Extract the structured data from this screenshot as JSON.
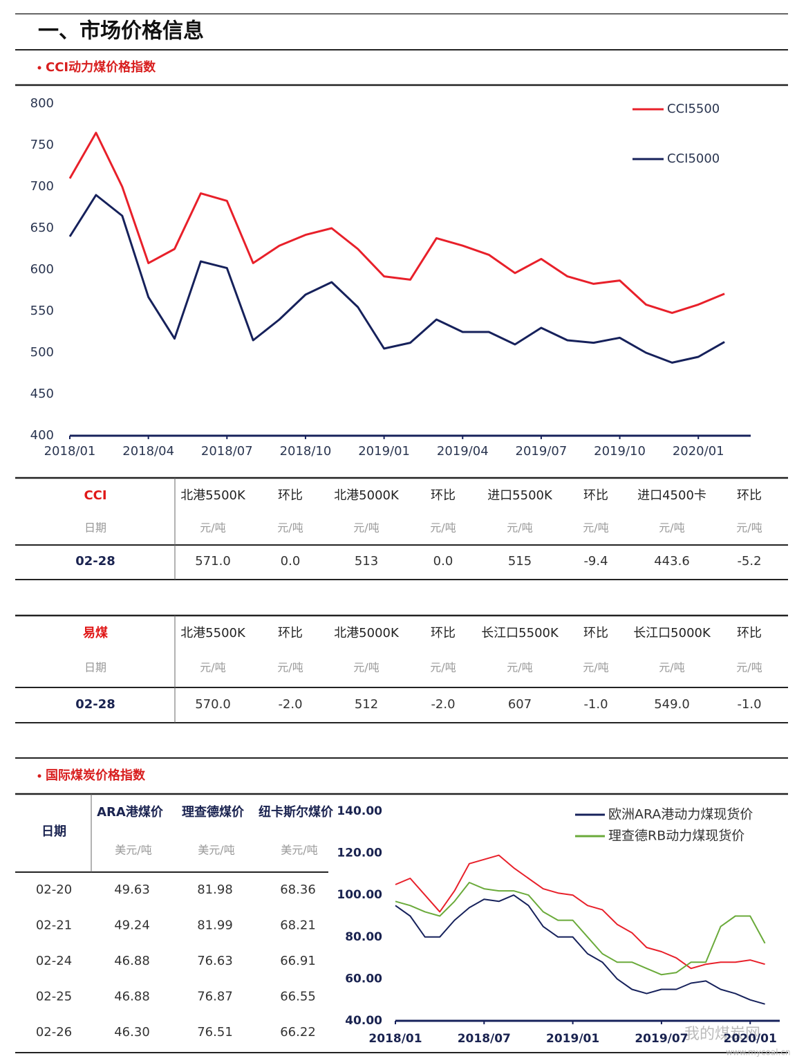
{
  "header": {
    "title": "一、市场价格信息"
  },
  "section1": {
    "title": "CCI动力煤价格指数"
  },
  "chart_data": [
    {
      "type": "line",
      "x": [
        "2018/01",
        "2018/02",
        "2018/03",
        "2018/04",
        "2018/05",
        "2018/06",
        "2018/07",
        "2018/08",
        "2018/09",
        "2018/10",
        "2018/11",
        "2018/12",
        "2019/01",
        "2019/02",
        "2019/03",
        "2019/04",
        "2019/05",
        "2019/06",
        "2019/07",
        "2019/08",
        "2019/09",
        "2019/10",
        "2019/11",
        "2019/12",
        "2020/01",
        "2020/02"
      ],
      "xlim": [
        "2018/01",
        "2020/03"
      ],
      "xticks": [
        "2018/01",
        "2018/04",
        "2018/07",
        "2018/10",
        "2019/01",
        "2019/04",
        "2019/07",
        "2019/10",
        "2020/01"
      ],
      "ylim": [
        400,
        800
      ],
      "yticks": [
        400,
        450,
        500,
        550,
        600,
        650,
        700,
        750,
        800
      ],
      "grid": false,
      "series": [
        {
          "name": "CCI5500",
          "color": "#e8202a",
          "values": [
            710,
            765,
            700,
            608,
            625,
            692,
            683,
            608,
            629,
            642,
            650,
            625,
            592,
            588,
            638,
            629,
            618,
            596,
            613,
            592,
            583,
            587,
            558,
            548,
            558,
            571
          ]
        },
        {
          "name": "CCI5000",
          "color": "#16215b",
          "values": [
            640,
            690,
            665,
            567,
            517,
            610,
            602,
            515,
            540,
            570,
            585,
            555,
            505,
            512,
            540,
            525,
            525,
            510,
            530,
            515,
            512,
            518,
            500,
            488,
            495,
            513
          ]
        }
      ]
    },
    {
      "type": "line",
      "x": [
        "2018/01",
        "2018/02",
        "2018/03",
        "2018/04",
        "2018/05",
        "2018/06",
        "2018/07",
        "2018/08",
        "2018/09",
        "2018/10",
        "2018/11",
        "2018/12",
        "2019/01",
        "2019/02",
        "2019/03",
        "2019/04",
        "2019/05",
        "2019/06",
        "2019/07",
        "2019/08",
        "2019/09",
        "2019/10",
        "2019/11",
        "2019/12",
        "2020/01",
        "2020/02"
      ],
      "xlim": [
        "2018/01",
        "2020/03"
      ],
      "xticks": [
        "2018/01",
        "2018/07",
        "2019/01",
        "2019/07",
        "2020/01"
      ],
      "ylim": [
        40,
        140
      ],
      "yticks": [
        {
          "value": 40,
          "label": "40.00"
        },
        {
          "value": 60,
          "label": "60.00"
        },
        {
          "value": 80,
          "label": "80.00"
        },
        {
          "value": 100,
          "label": "100.00"
        },
        {
          "value": 120,
          "label": "120.00"
        },
        {
          "value": 140,
          "label": "140.00"
        }
      ],
      "grid": false,
      "series": [
        {
          "color": "#e8202a",
          "values": [
            105,
            108,
            100,
            92,
            102,
            115,
            117,
            119,
            113,
            108,
            103,
            101,
            100,
            95,
            93,
            86,
            82,
            75,
            73,
            70,
            65,
            67,
            68,
            68,
            69,
            67
          ]
        },
        {
          "name": "欧洲ARA港动力煤现货价",
          "color": "#16215b",
          "values": [
            95,
            90,
            80,
            80,
            88,
            94,
            98,
            97,
            100,
            95,
            85,
            80,
            80,
            72,
            68,
            60,
            55,
            53,
            55,
            55,
            58,
            59,
            55,
            53,
            50,
            48
          ]
        },
        {
          "name": "理查德RB动力煤现货价",
          "color": "#6aaa3a",
          "values": [
            97,
            95,
            92,
            90,
            97,
            106,
            103,
            102,
            102,
            100,
            92,
            88,
            88,
            80,
            72,
            68,
            68,
            65,
            62,
            63,
            68,
            68,
            85,
            90,
            90,
            77
          ]
        }
      ]
    }
  ],
  "cci_table": {
    "header": [
      "CCI",
      "北港5500K",
      "环比",
      "北港5000K",
      "环比",
      "进口5500K",
      "环比",
      "进口4500卡",
      "环比"
    ],
    "units": [
      "日期",
      "元/吨",
      "元/吨",
      "元/吨",
      "元/吨",
      "元/吨",
      "元/吨",
      "元/吨",
      "元/吨"
    ],
    "rows": [
      [
        "02-28",
        "571.0",
        "0.0",
        "513",
        "0.0",
        "515",
        "-9.4",
        "443.6",
        "-5.2"
      ]
    ]
  },
  "yimei_table": {
    "header": [
      "易煤",
      "北港5500K",
      "环比",
      "北港5000K",
      "环比",
      "长江口5500K",
      "环比",
      "长江口5000K",
      "环比"
    ],
    "units": [
      "日期",
      "元/吨",
      "元/吨",
      "元/吨",
      "元/吨",
      "元/吨",
      "元/吨",
      "元/吨",
      "元/吨"
    ],
    "rows": [
      [
        "02-28",
        "570.0",
        "-2.0",
        "512",
        "-2.0",
        "607",
        "-1.0",
        "549.0",
        "-1.0"
      ]
    ]
  },
  "section2": {
    "title": "国际煤炭价格指数"
  },
  "intl_table": {
    "header": [
      "日期",
      "ARA港煤价",
      "理查德煤价",
      "纽卡斯尔煤价"
    ],
    "units": [
      "美元/吨",
      "美元/吨",
      "美元/吨"
    ],
    "rows": [
      [
        "02-20",
        "49.63",
        "81.98",
        "68.36"
      ],
      [
        "02-21",
        "49.24",
        "81.99",
        "68.21"
      ],
      [
        "02-24",
        "46.88",
        "76.63",
        "66.91"
      ],
      [
        "02-25",
        "46.88",
        "76.87",
        "66.55"
      ],
      [
        "02-26",
        "46.30",
        "76.51",
        "66.22"
      ]
    ]
  },
  "watermark": {
    "name": "我的煤炭网",
    "url": "www.mycoal.cn"
  }
}
